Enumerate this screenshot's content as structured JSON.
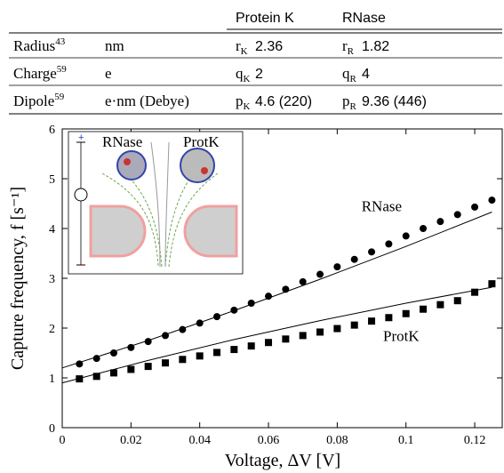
{
  "table": {
    "columns": [
      "Protein K",
      "RNase"
    ],
    "rows": [
      {
        "label": "Radius",
        "ref": "43",
        "unit": "nm",
        "k_symbol": "r",
        "k_sub": "K",
        "k_value": "2.36",
        "r_symbol": "r",
        "r_sub": "R",
        "r_value": "1.82"
      },
      {
        "label": "Charge",
        "ref": "59",
        "unit": "e",
        "k_symbol": "q",
        "k_sub": "K",
        "k_value": "2",
        "r_symbol": "q",
        "r_sub": "R",
        "r_value": "4"
      },
      {
        "label": "Dipole",
        "ref": "59",
        "unit": "e·nm (Debye)",
        "k_symbol": "p",
        "k_sub": "K",
        "k_value": "4.6 (220)",
        "r_symbol": "p",
        "r_sub": "R",
        "r_value": "9.36 (446)"
      }
    ]
  },
  "inset": {
    "labels": [
      "RNase",
      "ProtK"
    ]
  },
  "chart_data": {
    "type": "scatter",
    "x_label": "Voltage,  ΔV [V]",
    "y_label": "Capture frequency,  f [s⁻¹]",
    "xlim": [
      0,
      0.128
    ],
    "ylim": [
      0,
      6
    ],
    "xticks": [
      0,
      0.02,
      0.04,
      0.06,
      0.08,
      0.1,
      0.12
    ],
    "yticks": [
      0,
      1,
      2,
      3,
      4,
      5,
      6
    ],
    "series": [
      {
        "name": "RNase",
        "color": "#000000",
        "marker": "circle",
        "x": [
          0.005,
          0.01,
          0.015,
          0.02,
          0.025,
          0.03,
          0.035,
          0.04,
          0.045,
          0.05,
          0.055,
          0.06,
          0.065,
          0.07,
          0.075,
          0.08,
          0.085,
          0.09,
          0.095,
          0.1,
          0.105,
          0.11,
          0.115,
          0.12,
          0.125
        ],
        "values": [
          1.28,
          1.39,
          1.5,
          1.61,
          1.73,
          1.85,
          1.97,
          2.1,
          2.23,
          2.36,
          2.5,
          2.64,
          2.78,
          2.93,
          3.08,
          3.23,
          3.38,
          3.53,
          3.69,
          3.85,
          4.0,
          4.14,
          4.28,
          4.43,
          4.57
        ]
      },
      {
        "name": "ProtK",
        "color": "#000000",
        "marker": "square",
        "x": [
          0.005,
          0.01,
          0.015,
          0.02,
          0.025,
          0.03,
          0.035,
          0.04,
          0.045,
          0.05,
          0.055,
          0.06,
          0.065,
          0.07,
          0.075,
          0.08,
          0.085,
          0.09,
          0.095,
          0.1,
          0.105,
          0.11,
          0.115,
          0.12,
          0.125
        ],
        "values": [
          0.98,
          1.03,
          1.1,
          1.17,
          1.23,
          1.3,
          1.37,
          1.44,
          1.51,
          1.57,
          1.64,
          1.71,
          1.78,
          1.85,
          1.92,
          1.99,
          2.06,
          2.14,
          2.21,
          2.29,
          2.38,
          2.47,
          2.55,
          2.72,
          2.89
        ]
      }
    ],
    "fits": [
      {
        "color": "#000000",
        "x": [
          0,
          0.025,
          0.05,
          0.075,
          0.1,
          0.125
        ],
        "values": [
          1.2,
          1.75,
          2.35,
          2.98,
          3.64,
          4.33
        ]
      },
      {
        "color": "#000000",
        "x": [
          0,
          0.025,
          0.05,
          0.075,
          0.1,
          0.125
        ],
        "values": [
          0.9,
          1.35,
          1.77,
          2.15,
          2.5,
          2.82
        ]
      }
    ]
  }
}
